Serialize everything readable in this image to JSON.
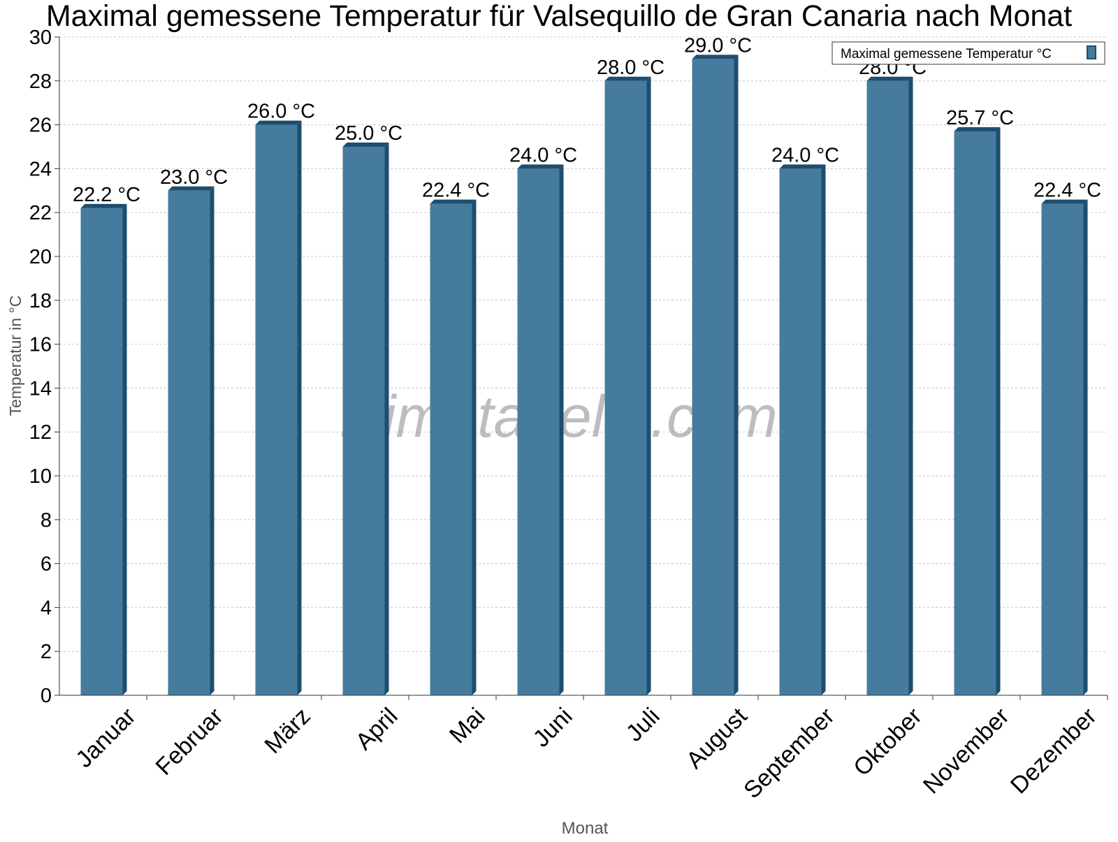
{
  "chart_data": {
    "type": "bar",
    "title": "Maximal gemessene Temperatur für Valsequillo de Gran Canaria nach Monat",
    "xlabel": "Monat",
    "ylabel": "Temperatur in °C",
    "categories": [
      "Januar",
      "Februar",
      "März",
      "April",
      "Mai",
      "Juni",
      "Juli",
      "August",
      "September",
      "Oktober",
      "November",
      "Dezember"
    ],
    "series": [
      {
        "name": "Maximal gemessene Temperatur °C",
        "values": [
          22.2,
          23.0,
          26.0,
          25.0,
          22.4,
          24.0,
          28.0,
          29.0,
          24.0,
          28.0,
          25.7,
          22.4
        ],
        "labels": [
          "22.2 °C",
          "23.0 °C",
          "26.0 °C",
          "25.0 °C",
          "22.4 °C",
          "24.0 °C",
          "28.0 °C",
          "29.0 °C",
          "24.0 °C",
          "28.0 °C",
          "25.7 °C",
          "22.4 °C"
        ]
      }
    ],
    "ylim": [
      0,
      30
    ],
    "yticks": [
      "0",
      "2",
      "4",
      "6",
      "8",
      "10",
      "12",
      "14",
      "16",
      "18",
      "20",
      "22",
      "24",
      "26",
      "28",
      "30"
    ],
    "grid": true,
    "legend_position": "top-right",
    "colors": {
      "bar_front": "#457b9d",
      "bar_side": "#1d4e6f",
      "bar_top": "#1d4e6f",
      "grid": "#c8c8c8",
      "axis": "#333333",
      "text": "#000000",
      "axis_title": "#555555"
    }
  },
  "watermark": "klimatabelle.com"
}
